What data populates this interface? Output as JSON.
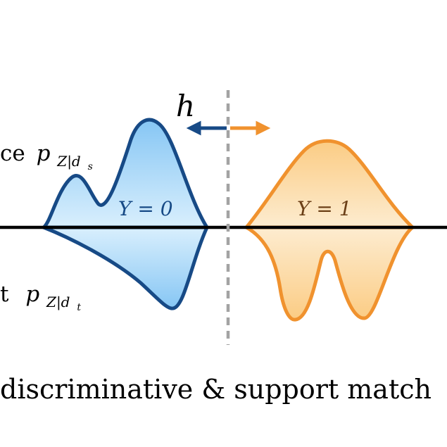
{
  "labels": {
    "hypothesis": "h",
    "source_prefix": "ce",
    "source_density": "p",
    "source_sub": "Z|d",
    "source_subsub": "s",
    "target_prefix": "t",
    "target_density": "p",
    "target_sub": "Z|d",
    "target_subsub": "t",
    "class0": "Y = 0",
    "class1": "Y = 1",
    "caption": "discriminative & support match"
  },
  "colors": {
    "blue_stroke": "#174a86",
    "blue_fill_top": "#8fcaf5",
    "blue_fill_bottom": "#e3f3fd",
    "orange_stroke": "#f0922e",
    "orange_fill_top": "#fbd08d",
    "orange_fill_bottom": "#fdeed3",
    "boundary": "#a3a3a3",
    "axis": "#000000",
    "class0_text": "#174a86",
    "class1_text": "#6b3f17"
  }
}
